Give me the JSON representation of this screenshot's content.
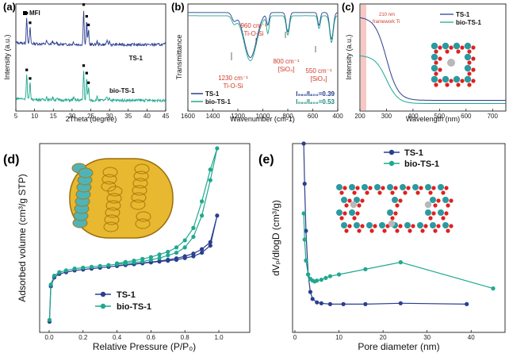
{
  "colors": {
    "ts1": "#2a3f8f",
    "bio": "#1fa88f",
    "red": "#d23a2a",
    "pink": "#f6c9c4"
  },
  "chart_data": [
    {
      "id": "a",
      "type": "line",
      "panel_label": "(a)",
      "xlabel": "2Theta (degree)",
      "ylabel": "Intensity (a.u.)",
      "xlim": [
        5,
        45
      ],
      "xticks": [
        "5",
        "10",
        "15",
        "20",
        "25",
        "30",
        "35",
        "40",
        "45"
      ],
      "legend": "MFI",
      "series": [
        {
          "name": "TS-1",
          "label": "TS-1",
          "offset": 0.62,
          "peaks": [
            [
              7.9,
              0.25
            ],
            [
              8.8,
              0.16
            ],
            [
              23.1,
              0.33
            ],
            [
              23.9,
              0.22
            ],
            [
              24.4,
              0.14
            ]
          ]
        },
        {
          "name": "bio-TS-1",
          "label": "bio-TS-1",
          "offset": 0.1,
          "peaks": [
            [
              7.9,
              0.24
            ],
            [
              8.8,
              0.16
            ],
            [
              23.1,
              0.28
            ],
            [
              23.9,
              0.21
            ],
            [
              24.4,
              0.12
            ]
          ]
        }
      ],
      "markers": [
        7.9,
        8.8,
        23.1,
        23.9,
        24.4
      ]
    },
    {
      "id": "b",
      "type": "line",
      "panel_label": "(b)",
      "xlabel": "Wavenumber (cm-1)",
      "ylabel": "Transmittance",
      "xlim": [
        1600,
        400
      ],
      "xticks": [
        "1600",
        "1400",
        "1200",
        "1000",
        "800",
        "600",
        "400"
      ],
      "series": [
        {
          "name": "TS-1",
          "label": "TS-1"
        },
        {
          "name": "bio-TS-1",
          "label": "bio-TS-1"
        }
      ],
      "annotations": {
        "a960": "960 cm⁻¹",
        "a960b": "Ti-O-Si",
        "a1230": "1230 cm⁻¹",
        "a1230b": "Ti-O-Si",
        "a800": "800 cm⁻¹",
        "a800b": "[SiO₄]",
        "a550": "550 cm⁻¹",
        "a550b": "[SiO₄]"
      },
      "ratios": [
        {
          "series": "TS-1",
          "text": "I₉₆₀/I₈₀₀=0.39",
          "value": 0.39
        },
        {
          "series": "bio-TS-1",
          "text": "I₉₆₀/I₈₀₀=0.53",
          "value": 0.53
        }
      ]
    },
    {
      "id": "c",
      "type": "line",
      "panel_label": "(c)",
      "xlabel": "Wavelength (nm)",
      "ylabel": "Intensity (a.u.)",
      "xlim": [
        200,
        750
      ],
      "xticks": [
        "200",
        "300",
        "400",
        "500",
        "600",
        "700"
      ],
      "band_label": [
        "210 nm",
        "framework Ti"
      ],
      "series": [
        {
          "name": "TS-1",
          "label": "TS-1"
        },
        {
          "name": "bio-TS-1",
          "label": "bio-TS-1"
        }
      ]
    },
    {
      "id": "d",
      "type": "line",
      "panel_label": "(d)",
      "xlabel": "Relative Pressure (P/P₀)",
      "ylabel": "Adsorbed volume (cm³/g STP)",
      "xlim": [
        0.0,
        1.0
      ],
      "xticks": [
        "0.0",
        "0.2",
        "0.4",
        "0.6",
        "0.8",
        "1.0"
      ],
      "series": [
        {
          "name": "TS-1",
          "label": "TS-1",
          "x": [
            0.002,
            0.01,
            0.03,
            0.06,
            0.1,
            0.15,
            0.2,
            0.25,
            0.3,
            0.35,
            0.4,
            0.45,
            0.5,
            0.55,
            0.6,
            0.65,
            0.7,
            0.75,
            0.8,
            0.85,
            0.9,
            0.95,
            0.99,
            0.95,
            0.9,
            0.85,
            0.8,
            0.75,
            0.7,
            0.65,
            0.6,
            0.55,
            0.5,
            0.45,
            0.4
          ],
          "y": [
            0.02,
            0.22,
            0.27,
            0.29,
            0.3,
            0.31,
            0.315,
            0.32,
            0.325,
            0.33,
            0.335,
            0.34,
            0.345,
            0.35,
            0.355,
            0.36,
            0.365,
            0.37,
            0.38,
            0.39,
            0.41,
            0.45,
            0.62,
            0.47,
            0.43,
            0.405,
            0.39,
            0.378,
            0.37,
            0.363,
            0.357,
            0.352,
            0.347,
            0.342,
            0.337
          ]
        },
        {
          "name": "bio-TS-1",
          "label": "bio-TS-1",
          "x": [
            0.002,
            0.01,
            0.03,
            0.06,
            0.1,
            0.15,
            0.2,
            0.25,
            0.3,
            0.35,
            0.4,
            0.45,
            0.5,
            0.55,
            0.6,
            0.65,
            0.7,
            0.75,
            0.8,
            0.85,
            0.9,
            0.95,
            0.99,
            0.95,
            0.9,
            0.85,
            0.8,
            0.75,
            0.7,
            0.65,
            0.6,
            0.55,
            0.5,
            0.45,
            0.4
          ],
          "y": [
            0.03,
            0.23,
            0.28,
            0.3,
            0.31,
            0.32,
            0.325,
            0.33,
            0.335,
            0.34,
            0.345,
            0.35,
            0.355,
            0.36,
            0.37,
            0.38,
            0.395,
            0.41,
            0.44,
            0.5,
            0.62,
            0.82,
            1.0,
            0.88,
            0.7,
            0.55,
            0.48,
            0.44,
            0.415,
            0.4,
            0.385,
            0.375,
            0.365,
            0.358,
            0.35
          ]
        }
      ]
    },
    {
      "id": "e",
      "type": "line",
      "panel_label": "(e)",
      "xlabel": "Pore diameter (nm)",
      "ylabel": "dVₚ/dlogD (cm³/g)",
      "xlim": [
        0,
        45
      ],
      "xticks": [
        "0",
        "10",
        "20",
        "30",
        "40"
      ],
      "series": [
        {
          "name": "TS-1",
          "label": "TS-1",
          "x": [
            2.0,
            2.2,
            2.5,
            3.0,
            3.5,
            4.0,
            5.0,
            6.0,
            8.0,
            11.0,
            16.0,
            24.0,
            39.0
          ],
          "y": [
            0.95,
            0.72,
            0.45,
            0.2,
            0.1,
            0.06,
            0.04,
            0.035,
            0.03,
            0.03,
            0.03,
            0.035,
            0.03
          ]
        },
        {
          "name": "bio-TS-1",
          "label": "bio-TS-1",
          "x": [
            2.0,
            2.2,
            2.5,
            3.0,
            3.5,
            4.0,
            4.5,
            5.0,
            6.0,
            7.0,
            8.0,
            10.0,
            16.0,
            24.0,
            45.0
          ],
          "y": [
            0.55,
            0.4,
            0.28,
            0.2,
            0.175,
            0.165,
            0.16,
            0.165,
            0.17,
            0.18,
            0.19,
            0.2,
            0.23,
            0.27,
            0.12
          ]
        }
      ]
    }
  ]
}
